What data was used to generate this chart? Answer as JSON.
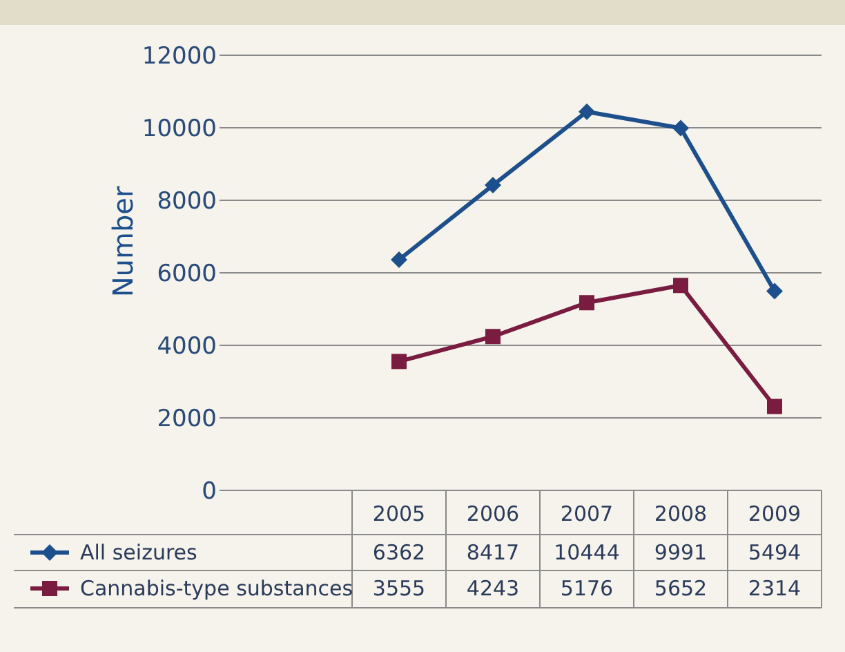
{
  "chart_data": {
    "type": "line",
    "ylabel": "Number",
    "categories": [
      "2005",
      "2006",
      "2007",
      "2008",
      "2009"
    ],
    "series": [
      {
        "name": "All seizures",
        "color": "#1d4f8c",
        "values": [
          6362,
          8417,
          10444,
          9991,
          5494
        ],
        "marker": "diamond"
      },
      {
        "name": "Cannabis-type substances",
        "color": "#7a1c40",
        "values": [
          3555,
          4243,
          5176,
          5652,
          2314
        ],
        "marker": "square"
      }
    ],
    "ylim": [
      0,
      12000
    ],
    "yticks": [
      0,
      2000,
      4000,
      6000,
      8000,
      10000,
      12000
    ],
    "grid": "y",
    "legend": "bottom left",
    "data_labels": true,
    "line_style": "solid"
  }
}
